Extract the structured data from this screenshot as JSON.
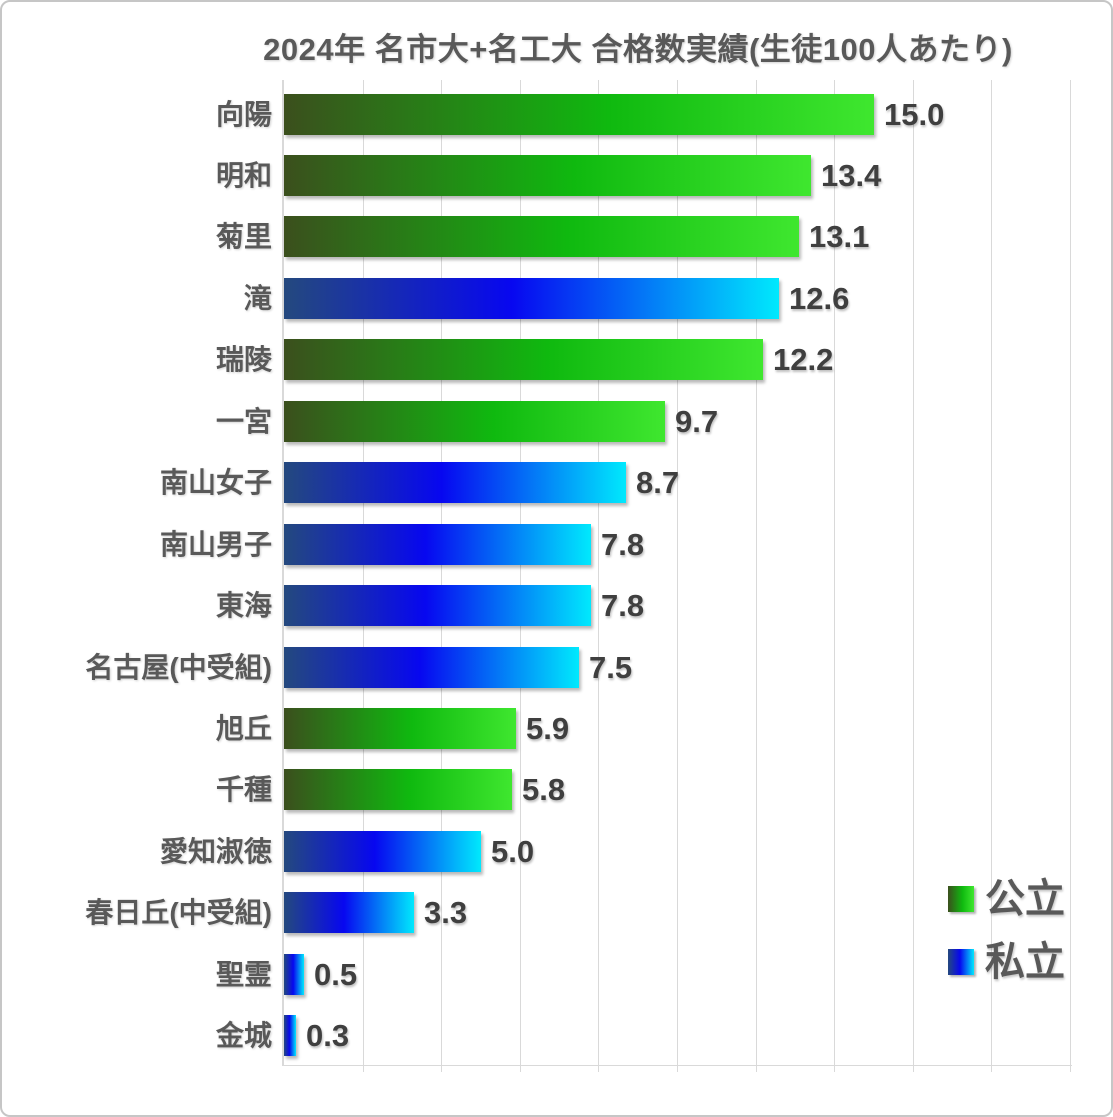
{
  "chart_data": {
    "type": "bar",
    "orientation": "horizontal",
    "title": "2024年 名市大+名工大 合格数実績(生徒100人あたり)",
    "categories": [
      "向陽",
      "明和",
      "菊里",
      "滝",
      "瑞陵",
      "一宮",
      "南山女子",
      "南山男子",
      "東海",
      "名古屋(中受組)",
      "旭丘",
      "千種",
      "愛知淑徳",
      "春日丘(中受組)",
      "聖霊",
      "金城"
    ],
    "values": [
      15.0,
      13.4,
      13.1,
      12.6,
      12.2,
      9.7,
      8.7,
      7.8,
      7.8,
      7.5,
      5.9,
      5.8,
      5.0,
      3.3,
      0.5,
      0.3
    ],
    "school_types": [
      "public",
      "public",
      "public",
      "private",
      "public",
      "public",
      "private",
      "private",
      "private",
      "private",
      "public",
      "public",
      "private",
      "private",
      "private",
      "private"
    ],
    "value_label_format": "one-decimal",
    "xlim": [
      0,
      21
    ],
    "gridline_interval": 2,
    "grid": true,
    "legend_position": "bottom-right",
    "legend": [
      {
        "label": "公立",
        "type": "public"
      },
      {
        "label": "私立",
        "type": "private"
      }
    ]
  },
  "colors": {
    "public_gradient": [
      "#3b4f1d",
      "#0fb90f",
      "#3fe72f"
    ],
    "private_gradient": [
      "#24497e",
      "#0707f0",
      "#00e9fd"
    ],
    "title_text": "#595959",
    "category_text": "#595959",
    "value_text": "#3f3f3f",
    "gridline": "#d9d9d9",
    "axis_line": "#d9d9d9"
  }
}
